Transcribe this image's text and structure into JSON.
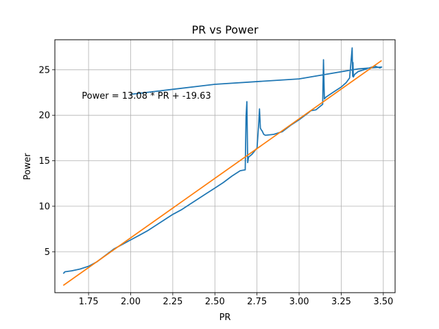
{
  "chart_data": {
    "type": "line",
    "title": "PR vs Power",
    "xlabel": "PR",
    "ylabel": "Power",
    "xlim": [
      1.55,
      3.57
    ],
    "ylim": [
      0.5,
      28.3
    ],
    "xticks": [
      1.75,
      2.0,
      2.25,
      2.5,
      2.75,
      3.0,
      3.25,
      3.5
    ],
    "xtick_labels": [
      "1.75",
      "2.00",
      "2.25",
      "2.50",
      "2.75",
      "3.00",
      "3.25",
      "3.50"
    ],
    "yticks": [
      5,
      10,
      15,
      20,
      25
    ],
    "ytick_labels": [
      "5",
      "10",
      "15",
      "20",
      "25"
    ],
    "grid": true,
    "colors": {
      "data": "#1f77b4",
      "fit": "#ff7f0e",
      "grid": "#b0b0b0"
    },
    "annotation": {
      "text": "Power = 13.08 * PR + -19.63",
      "x": 1.71,
      "y": 22.2
    },
    "series": [
      {
        "id": "measured",
        "color": "#1f77b4",
        "x": [
          1.6,
          1.61,
          1.65,
          1.7,
          1.75,
          1.8,
          1.85,
          1.9,
          1.95,
          2.0,
          2.05,
          2.1,
          2.15,
          2.2,
          2.25,
          2.3,
          2.35,
          2.4,
          2.45,
          2.5,
          2.55,
          2.6,
          2.65,
          2.68,
          2.685,
          2.69,
          2.695,
          2.7,
          2.72,
          2.75,
          2.76,
          2.765,
          2.77,
          2.775,
          2.78,
          2.79,
          2.8,
          2.85,
          2.9,
          2.95,
          3.0,
          3.05,
          3.07,
          3.1,
          3.14,
          3.145,
          3.15,
          3.16,
          3.2,
          3.25,
          3.28,
          3.3,
          3.315,
          3.318,
          3.32,
          3.322,
          3.325,
          3.33,
          3.35,
          3.4,
          3.45,
          3.48,
          3.49,
          3.35,
          3.0,
          2.5,
          2.0
        ],
        "y": [
          2.6,
          2.8,
          2.9,
          3.1,
          3.4,
          3.9,
          4.6,
          5.3,
          5.8,
          6.3,
          6.8,
          7.3,
          7.9,
          8.5,
          9.1,
          9.6,
          10.2,
          10.8,
          11.4,
          12.0,
          12.6,
          13.3,
          13.9,
          14.0,
          19.8,
          21.5,
          14.8,
          15.4,
          15.7,
          16.4,
          19.0,
          20.7,
          18.6,
          18.4,
          18.3,
          17.9,
          17.8,
          17.9,
          18.2,
          18.9,
          19.5,
          20.2,
          20.5,
          20.6,
          21.2,
          26.1,
          21.8,
          22.0,
          22.5,
          23.1,
          23.6,
          24.1,
          27.4,
          24.3,
          25.8,
          24.2,
          24.3,
          24.5,
          24.8,
          25.1,
          25.4,
          25.2,
          25.3,
          25.1,
          24.0,
          23.4,
          22.3
        ]
      },
      {
        "id": "fit",
        "color": "#ff7f0e",
        "x": [
          1.6,
          3.49
        ],
        "y": [
          1.3,
          26.02
        ]
      }
    ]
  }
}
